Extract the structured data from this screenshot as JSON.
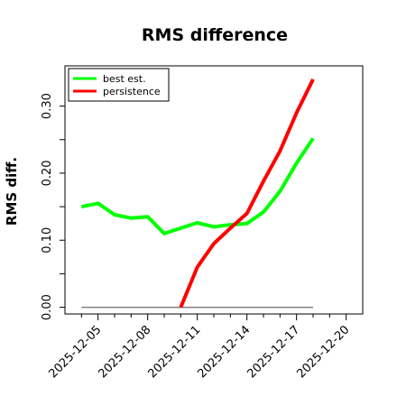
{
  "chart_data": {
    "type": "line",
    "title": "RMS difference",
    "xlabel": "",
    "ylabel": "RMS diff.",
    "x": [
      "2025-12-04",
      "2025-12-05",
      "2025-12-06",
      "2025-12-07",
      "2025-12-08",
      "2025-12-09",
      "2025-12-10",
      "2025-12-11",
      "2025-12-12",
      "2025-12-13",
      "2025-12-14",
      "2025-12-15",
      "2025-12-16",
      "2025-12-17",
      "2025-12-18"
    ],
    "x_ticks": [
      "2025-12-05",
      "2025-12-08",
      "2025-12-11",
      "2025-12-14",
      "2025-12-17",
      "2025-12-20"
    ],
    "y_ticks": [
      "0.00",
      "0.10",
      "0.20",
      "0.30"
    ],
    "y_tick_values": [
      0.0,
      0.1,
      0.2,
      0.3
    ],
    "ylim": [
      -0.01,
      0.36
    ],
    "xlim": [
      "2025-12-03",
      "2025-12-21"
    ],
    "grid": false,
    "legend_position": "top-left",
    "series": [
      {
        "name": "best est.",
        "color": "#00ff00",
        "values": [
          0.15,
          0.155,
          0.138,
          0.133,
          0.135,
          0.11,
          0.118,
          0.126,
          0.12,
          0.123,
          0.125,
          0.142,
          0.173,
          0.215,
          0.252
        ]
      },
      {
        "name": "persistence",
        "color": "#ff0000",
        "values": [
          null,
          null,
          null,
          null,
          null,
          null,
          0.0,
          0.06,
          0.095,
          0.118,
          0.14,
          0.188,
          0.233,
          0.29,
          0.34
        ]
      }
    ],
    "baseline": {
      "value": 0.0,
      "from": "2025-12-04",
      "to": "2025-12-18",
      "color": "#808080"
    }
  }
}
